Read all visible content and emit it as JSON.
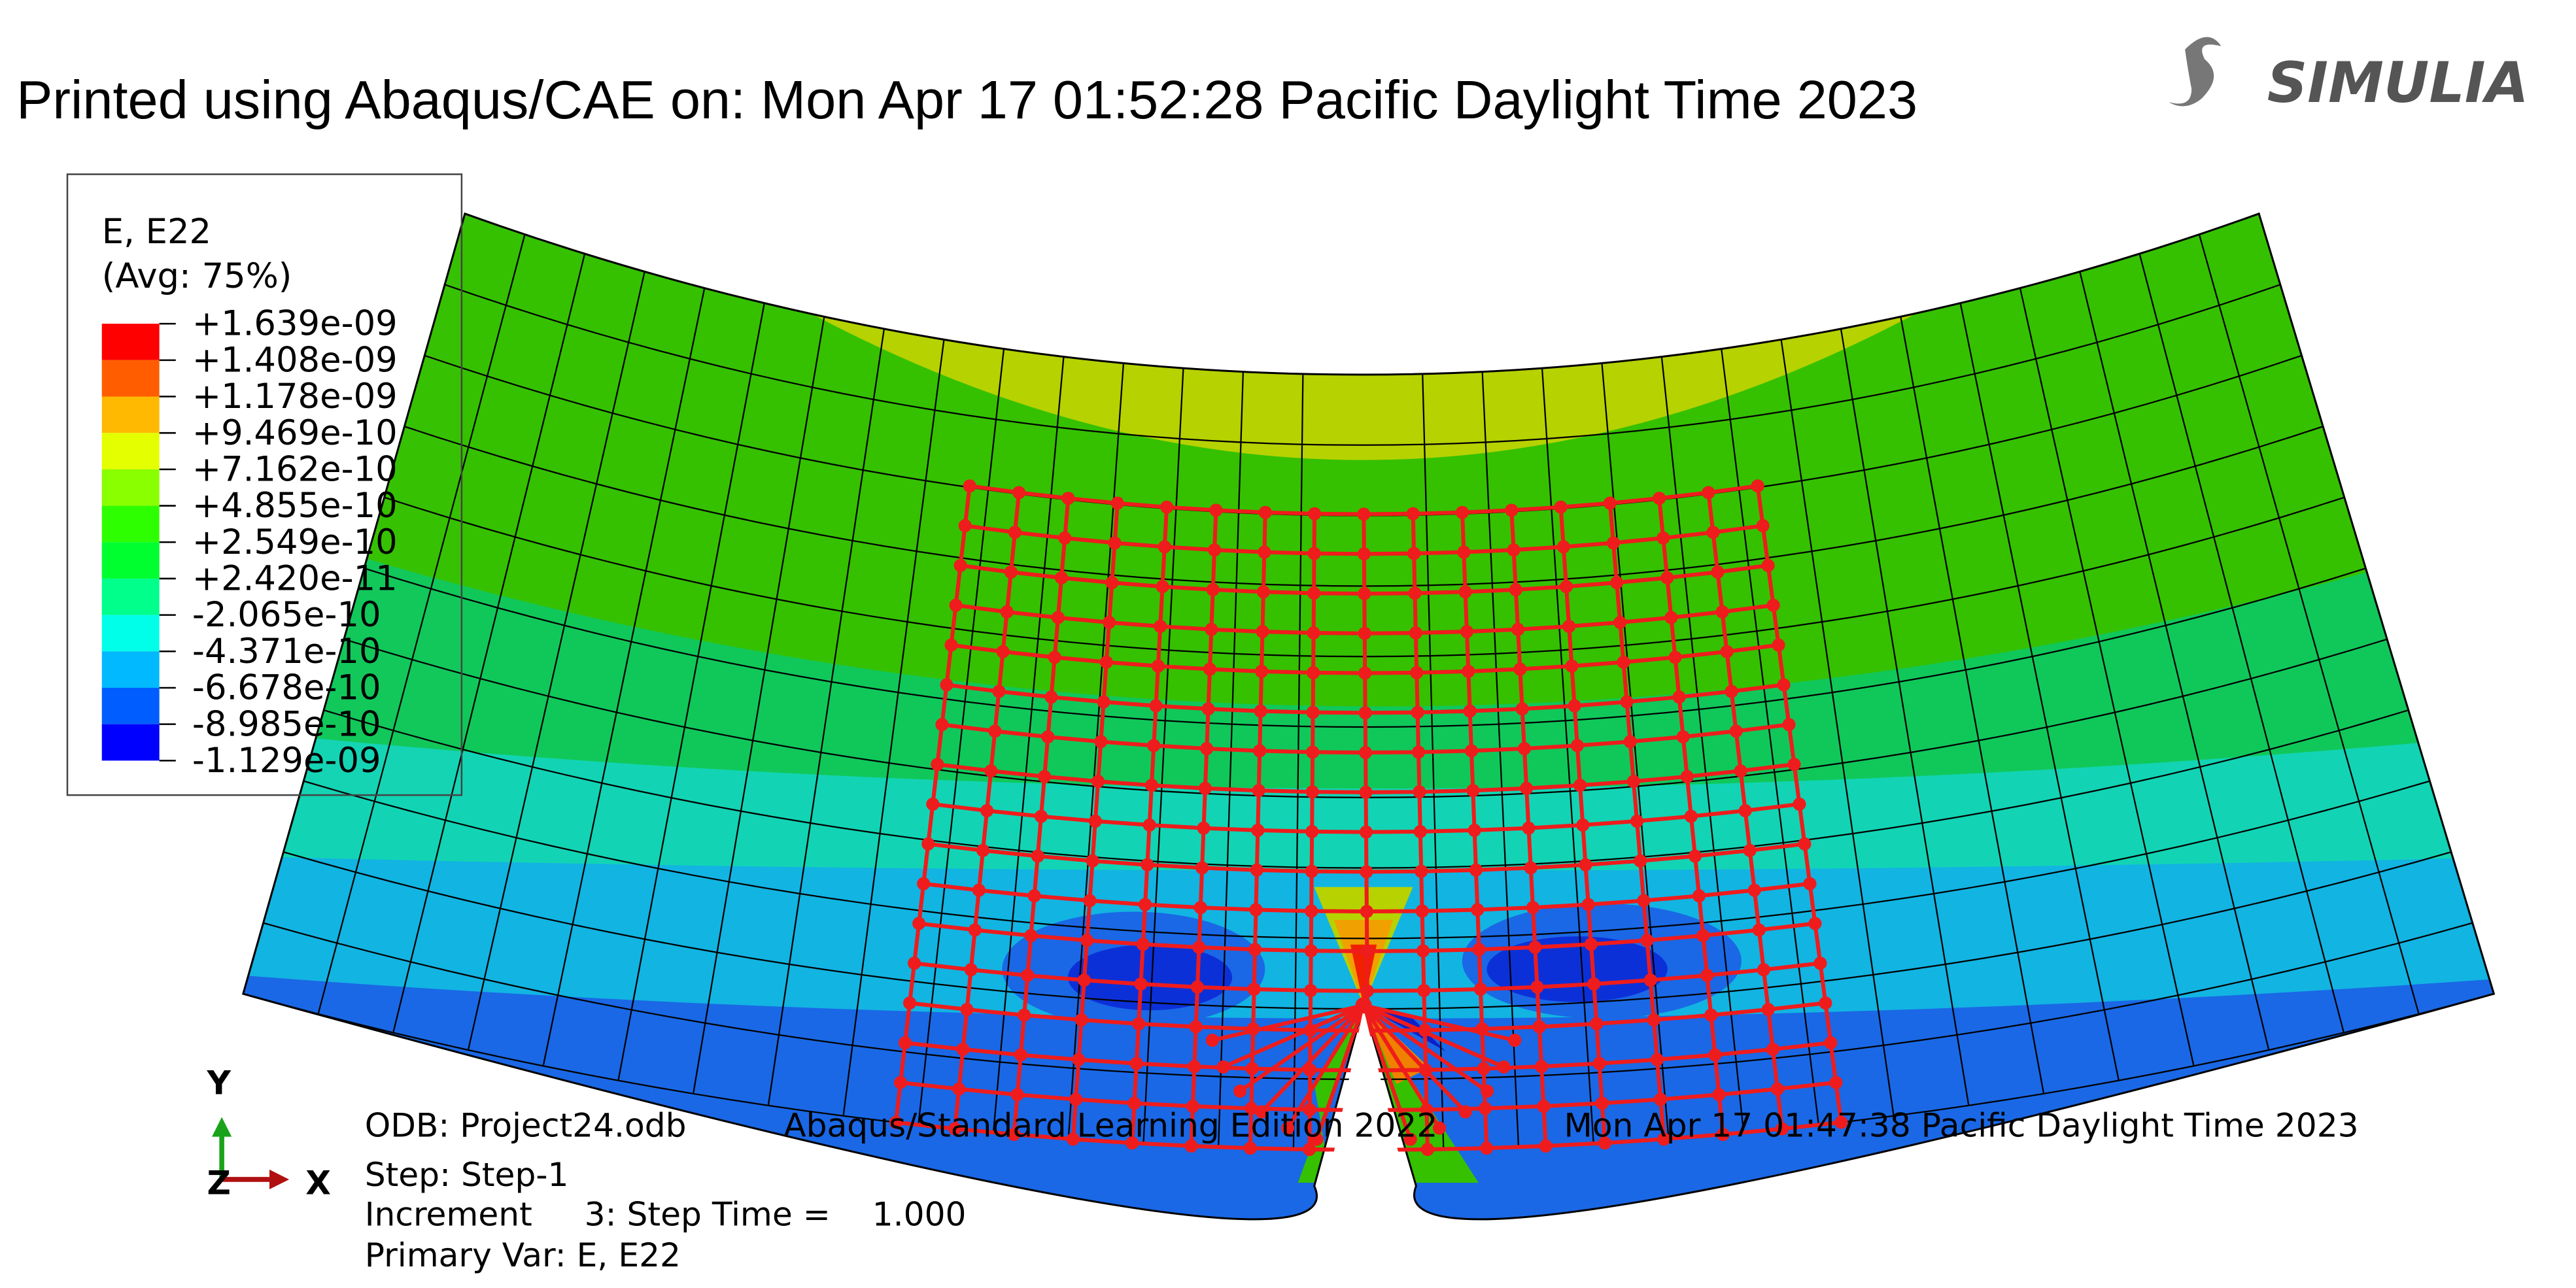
{
  "header": {
    "title": "Printed using Abaqus/CAE on: Mon Apr 17 01:52:28 Pacific Daylight Time 2023",
    "logo": "SIMULIA"
  },
  "legend": {
    "title": "E, E22",
    "subtitle": "(Avg: 75%)",
    "labels": [
      "+1.639e-09",
      "+1.408e-09",
      "+1.178e-09",
      "+9.469e-10",
      "+7.162e-10",
      "+4.855e-10",
      "+2.549e-10",
      "+2.420e-11",
      "-2.065e-10",
      "-4.371e-10",
      "-6.678e-10",
      "-8.985e-10",
      "-1.129e-09"
    ]
  },
  "info": {
    "odb": "ODB: Project24.odb",
    "edition": "Abaqus/Standard Learning Edition 2022",
    "date": "Mon Apr 17 01:47:38 Pacific Daylight Time 2023",
    "step": "Step: Step-1",
    "increment": "Increment     3: Step Time =    1.000",
    "primary_var": "Primary Var: E, E22"
  },
  "triad": {
    "x": "X",
    "y": "Y",
    "z": "Z"
  }
}
